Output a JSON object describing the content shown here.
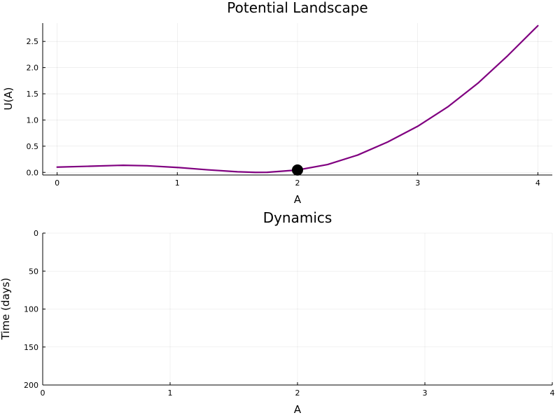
{
  "chart_data": [
    {
      "type": "line",
      "title": "Potential Landscape",
      "xlabel": "A",
      "ylabel": "U(A)",
      "xlim": [
        -0.12,
        4.12
      ],
      "ylim": [
        -0.05,
        2.85
      ],
      "xticks": [
        0,
        1,
        2,
        3,
        4
      ],
      "xtick_labels": [
        "0",
        "1",
        "2",
        "3",
        "4"
      ],
      "yticks": [
        0.0,
        0.5,
        1.0,
        1.5,
        2.0,
        2.5
      ],
      "ytick_labels": [
        "0.0",
        "0.5",
        "1.0",
        "1.5",
        "2.0",
        "2.5"
      ],
      "grid": true,
      "legend": "none",
      "series": [
        {
          "color": "#800080",
          "x": [
            0.0,
            0.25,
            0.5,
            0.55,
            0.75,
            1.0,
            1.25,
            1.5,
            1.65,
            1.75,
            2.0,
            2.25,
            2.5,
            2.75,
            3.0,
            3.25,
            3.5,
            3.75,
            4.0
          ],
          "y": [
            0.1,
            0.116,
            0.133,
            0.135,
            0.126,
            0.094,
            0.049,
            0.012,
            0.0,
            0.002,
            0.045,
            0.15,
            0.33,
            0.58,
            0.88,
            1.25,
            1.7,
            2.23,
            2.8
          ]
        }
      ],
      "marker": {
        "x": 2.0,
        "y": 0.045,
        "color": "#000000"
      }
    },
    {
      "type": "line",
      "title": "Dynamics",
      "xlabel": "A",
      "ylabel": "Time (days)",
      "xlim": [
        0,
        4
      ],
      "ylim": [
        0,
        200
      ],
      "y_inverted": true,
      "xticks": [
        0,
        1,
        2,
        3,
        4
      ],
      "xtick_labels": [
        "0",
        "1",
        "2",
        "3",
        "4"
      ],
      "yticks": [
        0,
        50,
        100,
        150,
        200
      ],
      "ytick_labels": [
        "0",
        "50",
        "100",
        "150",
        "200"
      ],
      "grid": true,
      "legend": "none",
      "series": []
    }
  ]
}
